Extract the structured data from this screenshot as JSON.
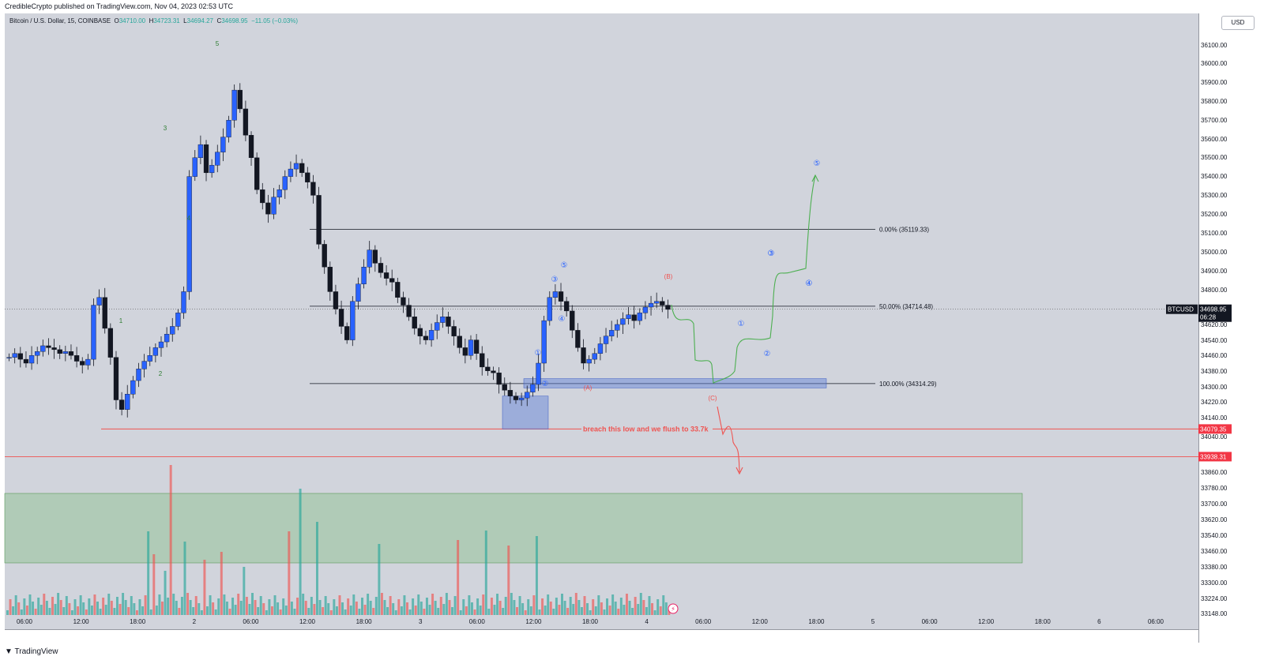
{
  "header": {
    "publish_info": "CredibleCrypto published on TradingView.com, Nov 04, 2023 02:53 UTC"
  },
  "legend": {
    "symbol": "Bitcoin / U.S. Dollar, 15, COINBASE",
    "open_label": "O",
    "open": "34710.00",
    "high_label": "H",
    "high": "34723.31",
    "low_label": "L",
    "low": "34694.27",
    "close_label": "C",
    "close": "34698.95",
    "change": "−11.05 (−0.03%)"
  },
  "currency_button": "USD",
  "footer": {
    "brand": "TradingView"
  },
  "colors": {
    "up": "#26a69a",
    "down": "#ef5350",
    "candle_body": "#2962ff",
    "projection_green": "#4caf50",
    "projection_red": "#ef5350",
    "wave_blue": "#2962ff",
    "box_blue": "#5b7fd6",
    "zone_green": "#7fbf7f"
  },
  "chart_data": {
    "type": "candlestick",
    "symbol": "BTCUSD",
    "exchange": "COINBASE",
    "timeframe": "15",
    "y_axis_ticks": [
      "36100.00",
      "36000.00",
      "35900.00",
      "35800.00",
      "35700.00",
      "35600.00",
      "35500.00",
      "35400.00",
      "35300.00",
      "35200.00",
      "35100.00",
      "35000.00",
      "34900.00",
      "34800.00",
      "34620.00",
      "34540.00",
      "34460.00",
      "34380.00",
      "34300.00",
      "34220.00",
      "34140.00",
      "34040.00",
      "33860.00",
      "33780.00",
      "33700.00",
      "33620.00",
      "33540.00",
      "33460.00",
      "33380.00",
      "33300.00",
      "33224.00",
      "33148.00"
    ],
    "x_axis_ticks": [
      "06:00",
      "12:00",
      "18:00",
      "2",
      "06:00",
      "12:00",
      "18:00",
      "3",
      "06:00",
      "12:00",
      "18:00",
      "4",
      "06:00",
      "12:00",
      "18:00",
      "5",
      "06:00",
      "12:00",
      "18:00",
      "6",
      "06:00"
    ],
    "ylim": [
      33148,
      36200
    ],
    "current_price_label": {
      "symbol": "BTCUSD",
      "price": "34698.95",
      "countdown": "06:28"
    },
    "price_tags": [
      "34079.35",
      "33938.31"
    ],
    "fibonacci": [
      {
        "label": "0.00% (35119.33)",
        "price": 35119.33
      },
      {
        "label": "50.00% (34714.48)",
        "price": 34714.48
      },
      {
        "label": "100.00% (34314.29)",
        "price": 34314.29
      }
    ],
    "horizontal_levels": [
      {
        "price": 34079.35,
        "text": "breach this low and we flush to 33.7k"
      },
      {
        "price": 33938.31
      }
    ],
    "wave_labels_green": [
      "5",
      "3",
      "4",
      "1",
      "2"
    ],
    "wave_labels_blue": [
      "①",
      "②",
      "③",
      "④",
      "⑤",
      "③",
      "④",
      "①",
      "②",
      "③",
      "④",
      "⑤"
    ],
    "wave_labels_red": [
      "(B)",
      "(A)",
      "(C)"
    ],
    "series_close": [
      34450,
      34470,
      34440,
      34420,
      34460,
      34480,
      34510,
      34500,
      34490,
      34470,
      34480,
      34460,
      34430,
      34410,
      34440,
      34720,
      34760,
      34600,
      34450,
      34230,
      34180,
      34260,
      34330,
      34390,
      34430,
      34460,
      34500,
      34530,
      34570,
      34610,
      34680,
      34790,
      35400,
      35500,
      35570,
      35420,
      35460,
      35530,
      35610,
      35700,
      35860,
      35760,
      35620,
      35500,
      35330,
      35260,
      35200,
      35290,
      35330,
      35400,
      35440,
      35470,
      35420,
      35370,
      35300,
      35040,
      34920,
      34790,
      34700,
      34610,
      34540,
      34740,
      34830,
      34920,
      35010,
      34940,
      34890,
      34860,
      34840,
      34760,
      34720,
      34660,
      34600,
      34560,
      34540,
      34590,
      34630,
      34660,
      34610,
      34560,
      34500,
      34460,
      34540,
      34470,
      34400,
      34380,
      34370,
      34310,
      34280,
      34250,
      34230,
      34240,
      34270,
      34310,
      34420,
      34640,
      34760,
      34790,
      34740,
      34690,
      34590,
      34500,
      34420,
      34440,
      34470,
      34520,
      34560,
      34590,
      34620,
      34650,
      34670,
      34640,
      34680,
      34710,
      34730,
      34740,
      34720,
      34698
    ]
  }
}
